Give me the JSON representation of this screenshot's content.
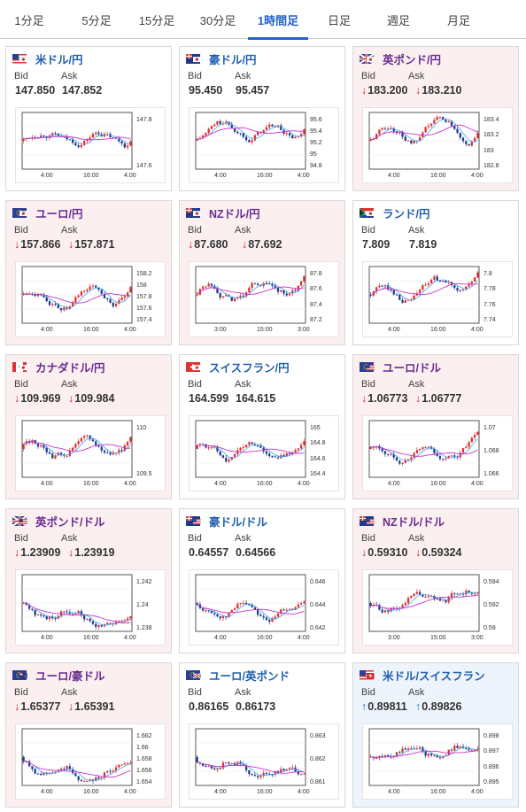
{
  "tabs": [
    "1分足",
    "5分足",
    "15分足",
    "30分足",
    "1時間足",
    "日足",
    "週足",
    "月足"
  ],
  "active_tab": 4,
  "labels": {
    "bid": "Bid",
    "ask": "Ask"
  },
  "colors": {
    "down_card": "#fbeff0",
    "up_card": "#edf4fb",
    "candle_up": "#e0302d",
    "candle_down": "#1e3c8c",
    "ma_short": "#42a5f5",
    "ma_long": "#cc33cc"
  },
  "cards": [
    {
      "pair": "米ドル/円",
      "flags": [
        "us",
        "jp"
      ],
      "state": "none",
      "bid": "147.850",
      "ask": "147.852",
      "arrow": "",
      "chart_data": {
        "type": "candlestick",
        "y_ticks": [
          "147.8",
          "147.6"
        ],
        "x_ticks": [
          "4:00",
          "16:00",
          "4:00"
        ]
      }
    },
    {
      "pair": "豪ドル/円",
      "flags": [
        "au",
        "jp"
      ],
      "state": "none",
      "bid": "95.450",
      "ask": "95.457",
      "arrow": "",
      "chart_data": {
        "type": "candlestick",
        "y_ticks": [
          "95.6",
          "95.4",
          "95.2",
          "95",
          "94.8"
        ],
        "x_ticks": [
          "4:00",
          "16:00",
          "4:00"
        ]
      }
    },
    {
      "pair": "英ポンド/円",
      "flags": [
        "gb",
        "jp"
      ],
      "state": "down",
      "bid": "183.200",
      "ask": "183.210",
      "arrow": "↓",
      "chart_data": {
        "type": "candlestick",
        "y_ticks": [
          "183.4",
          "183.2",
          "183",
          "182.8"
        ],
        "x_ticks": [
          "4:00",
          "16:00",
          "4:00"
        ]
      }
    },
    {
      "pair": "ユーロ/円",
      "flags": [
        "eu",
        "jp"
      ],
      "state": "down",
      "bid": "157.866",
      "ask": "157.871",
      "arrow": "↓",
      "chart_data": {
        "type": "candlestick",
        "y_ticks": [
          "158.2",
          "158",
          "157.8",
          "157.6",
          "157.4"
        ],
        "x_ticks": [
          "4:00",
          "16:00",
          "4:00"
        ]
      }
    },
    {
      "pair": "NZドル/円",
      "flags": [
        "nz",
        "jp"
      ],
      "state": "down",
      "bid": "87.680",
      "ask": "87.692",
      "arrow": "↓",
      "chart_data": {
        "type": "candlestick",
        "y_ticks": [
          "87.8",
          "87.6",
          "87.4",
          "87.2"
        ],
        "x_ticks": [
          "3:00",
          "15:00",
          "3:00"
        ]
      }
    },
    {
      "pair": "ランド/円",
      "flags": [
        "za",
        "jp"
      ],
      "state": "none",
      "bid": "7.809",
      "ask": "7.819",
      "arrow": "",
      "chart_data": {
        "type": "candlestick",
        "y_ticks": [
          "7.8",
          "7.78",
          "7.76",
          "7.74"
        ],
        "x_ticks": [
          "4:00",
          "16:00",
          "4:00"
        ]
      }
    },
    {
      "pair": "カナダドル/円",
      "flags": [
        "ca",
        "jp"
      ],
      "state": "down",
      "bid": "109.969",
      "ask": "109.984",
      "arrow": "↓",
      "chart_data": {
        "type": "candlestick",
        "y_ticks": [
          "110",
          "109.5"
        ],
        "x_ticks": [
          "4:00",
          "16:00",
          "4:00"
        ]
      }
    },
    {
      "pair": "スイスフラン/円",
      "flags": [
        "ch",
        "jp"
      ],
      "state": "none",
      "bid": "164.599",
      "ask": "164.615",
      "arrow": "",
      "chart_data": {
        "type": "candlestick",
        "y_ticks": [
          "165",
          "164.8",
          "164.6",
          "164.4"
        ],
        "x_ticks": [
          "4:00",
          "16:00",
          "4:00"
        ]
      }
    },
    {
      "pair": "ユーロ/ドル",
      "flags": [
        "eu",
        "us"
      ],
      "state": "down",
      "bid": "1.06773",
      "ask": "1.06777",
      "arrow": "↓",
      "chart_data": {
        "type": "candlestick",
        "y_ticks": [
          "1.07",
          "1.068",
          "1.066"
        ],
        "x_ticks": [
          "4:00",
          "16:00",
          "4:00"
        ]
      }
    },
    {
      "pair": "英ポンド/ドル",
      "flags": [
        "gb",
        "us"
      ],
      "state": "down",
      "bid": "1.23909",
      "ask": "1.23919",
      "arrow": "↓",
      "chart_data": {
        "type": "candlestick",
        "y_ticks": [
          "1.242",
          "1.24",
          "1.238"
        ],
        "x_ticks": [
          "4:00",
          "16:00",
          "4:00"
        ]
      }
    },
    {
      "pair": "豪ドル/ドル",
      "flags": [
        "au",
        "us"
      ],
      "state": "none",
      "bid": "0.64557",
      "ask": "0.64566",
      "arrow": "",
      "chart_data": {
        "type": "candlestick",
        "y_ticks": [
          "0.646",
          "0.644",
          "0.642"
        ],
        "x_ticks": [
          "4:00",
          "16:00",
          "4:00"
        ]
      }
    },
    {
      "pair": "NZドル/ドル",
      "flags": [
        "nz",
        "us"
      ],
      "state": "down",
      "bid": "0.59310",
      "ask": "0.59324",
      "arrow": "↓",
      "chart_data": {
        "type": "candlestick",
        "y_ticks": [
          "0.594",
          "0.592",
          "0.59"
        ],
        "x_ticks": [
          "3:00",
          "15:00",
          "3:00"
        ]
      }
    },
    {
      "pair": "ユーロ/豪ドル",
      "flags": [
        "eu",
        "au"
      ],
      "state": "down",
      "bid": "1.65377",
      "ask": "1.65391",
      "arrow": "↓",
      "chart_data": {
        "type": "candlestick",
        "y_ticks": [
          "1.662",
          "1.66",
          "1.658",
          "1.656",
          "1.654"
        ],
        "x_ticks": [
          "4:00",
          "16:00",
          "4:00"
        ]
      }
    },
    {
      "pair": "ユーロ/英ポンド",
      "flags": [
        "eu",
        "gb"
      ],
      "state": "none",
      "bid": "0.86165",
      "ask": "0.86173",
      "arrow": "",
      "chart_data": {
        "type": "candlestick",
        "y_ticks": [
          "0.863",
          "0.862",
          "0.861"
        ],
        "x_ticks": [
          "4:00",
          "16:00",
          "4:00"
        ]
      }
    },
    {
      "pair": "米ドル/スイスフラン",
      "flags": [
        "us",
        "ch"
      ],
      "state": "up",
      "bid": "0.89811",
      "ask": "0.89826",
      "arrow": "↑",
      "chart_data": {
        "type": "candlestick",
        "y_ticks": [
          "0.898",
          "0.897",
          "0.896",
          "0.895"
        ],
        "x_ticks": [
          "4:00",
          "16:00",
          "4:00"
        ]
      }
    }
  ]
}
